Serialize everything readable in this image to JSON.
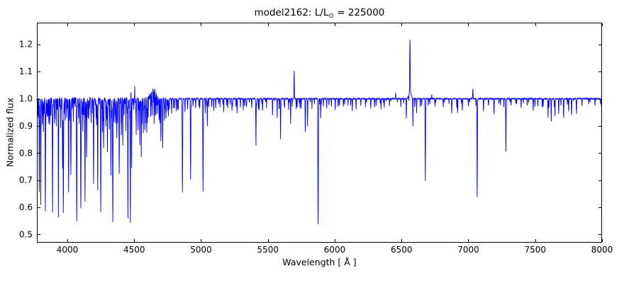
{
  "figure": {
    "title_prefix": "model2162: L/L",
    "title_sub": "⊙",
    "title_suffix": " = 225000"
  },
  "chart_data": {
    "type": "line",
    "title": "model2162: L/L⊙ = 225000",
    "xlabel": "Wavelength [ Å ]",
    "ylabel": "Normalized flux",
    "xlim": [
      3772,
      8000
    ],
    "ylim": [
      0.47,
      1.28
    ],
    "xticks": [
      4000,
      4500,
      5000,
      5500,
      6000,
      6500,
      7000,
      7500,
      8000
    ],
    "yticks": [
      0.5,
      0.6,
      0.7,
      0.8,
      0.9,
      1.0,
      1.1,
      1.2
    ],
    "grid": false,
    "legend": "none",
    "line_color": "#0000ff",
    "axes_color": "#000000",
    "background": "#ffffff",
    "continuum": 1.0,
    "noise_seed": 42,
    "features_columns": [
      "wavelength_A",
      "flux",
      "sigma_A"
    ],
    "features": [
      [
        3776,
        0.95,
        1.0
      ],
      [
        3782,
        0.93,
        1.0
      ],
      [
        3790,
        0.655,
        1.3
      ],
      [
        3801,
        0.61,
        1.4
      ],
      [
        3812,
        0.91,
        1.1
      ],
      [
        3821,
        0.88,
        1.2
      ],
      [
        3835,
        0.585,
        1.5
      ],
      [
        3850,
        0.93,
        1.1
      ],
      [
        3868,
        0.9,
        1.2
      ],
      [
        3889,
        0.585,
        1.7
      ],
      [
        3907,
        0.93,
        1.1
      ],
      [
        3933,
        0.565,
        1.5
      ],
      [
        3950,
        0.89,
        1.2
      ],
      [
        3964,
        0.75,
        1.3
      ],
      [
        3970,
        0.585,
        1.7
      ],
      [
        3984,
        0.92,
        1.1
      ],
      [
        3995,
        0.93,
        1.1
      ],
      [
        4009,
        0.66,
        1.4
      ],
      [
        4026,
        0.72,
        1.7
      ],
      [
        4045,
        0.92,
        1.2
      ],
      [
        4070,
        0.545,
        1.7
      ],
      [
        4089,
        0.91,
        1.2
      ],
      [
        4101,
        0.6,
        1.8
      ],
      [
        4116,
        0.88,
        1.3
      ],
      [
        4132,
        0.62,
        1.4
      ],
      [
        4144,
        0.78,
        1.4
      ],
      [
        4160,
        0.93,
        1.2
      ],
      [
        4178,
        0.91,
        1.2
      ],
      [
        4196,
        0.69,
        1.4
      ],
      [
        4215,
        0.93,
        1.2
      ],
      [
        4227,
        0.66,
        1.4
      ],
      [
        4250,
        0.58,
        1.4
      ],
      [
        4262,
        0.88,
        1.2
      ],
      [
        4271,
        0.82,
        1.3
      ],
      [
        4288,
        0.9,
        1.2
      ],
      [
        4300,
        0.8,
        1.4
      ],
      [
        4315,
        0.89,
        1.2
      ],
      [
        4326,
        0.72,
        1.3
      ],
      [
        4340,
        0.55,
        1.8
      ],
      [
        4360,
        0.91,
        1.2
      ],
      [
        4370,
        0.86,
        1.2
      ],
      [
        4388,
        0.72,
        1.4
      ],
      [
        4404,
        0.87,
        1.2
      ],
      [
        4415,
        0.83,
        1.3
      ],
      [
        4438,
        0.88,
        1.2
      ],
      [
        4453,
        0.56,
        1.4
      ],
      [
        4471,
        0.545,
        1.7
      ],
      [
        4481,
        0.75,
        1.3
      ],
      [
        4475,
        1.05,
        0.9
      ],
      [
        4504,
        1.05,
        0.9
      ],
      [
        4515,
        0.87,
        1.2
      ],
      [
        4529,
        0.89,
        1.2
      ],
      [
        4542,
        0.83,
        1.3
      ],
      [
        4553,
        0.79,
        1.3
      ],
      [
        4568,
        0.87,
        1.2
      ],
      [
        4580,
        0.88,
        1.2
      ],
      [
        4594,
        0.87,
        1.3
      ],
      [
        4645,
        1.033,
        22
      ],
      [
        4634,
        0.91,
        1.2
      ],
      [
        4649,
        0.88,
        1.3
      ],
      [
        4662,
        0.92,
        1.2
      ],
      [
        4673,
        0.93,
        1.2
      ],
      [
        4686,
        0.92,
        1.4
      ],
      [
        4700,
        0.84,
        1.4
      ],
      [
        4713,
        0.815,
        1.4
      ],
      [
        4726,
        0.92,
        1.2
      ],
      [
        4740,
        0.95,
        1.1
      ],
      [
        4762,
        0.96,
        1.1
      ],
      [
        4780,
        0.945,
        1.2
      ],
      [
        4800,
        0.965,
        1.1
      ],
      [
        4815,
        0.955,
        1.1
      ],
      [
        4830,
        0.96,
        1.1
      ],
      [
        4861,
        0.655,
        1.7
      ],
      [
        4880,
        0.95,
        1.2
      ],
      [
        4900,
        0.96,
        1.1
      ],
      [
        4922,
        0.705,
        1.5
      ],
      [
        4940,
        0.97,
        1.1
      ],
      [
        4960,
        0.965,
        1.1
      ],
      [
        4985,
        0.97,
        1.1
      ],
      [
        5015,
        0.66,
        1.5
      ],
      [
        5032,
        0.95,
        1.1
      ],
      [
        5047,
        0.9,
        1.3
      ],
      [
        5080,
        0.97,
        1.1
      ],
      [
        5110,
        0.965,
        1.1
      ],
      [
        5142,
        0.97,
        1.1
      ],
      [
        5170,
        0.95,
        1.2
      ],
      [
        5200,
        0.965,
        1.1
      ],
      [
        5235,
        0.97,
        1.1
      ],
      [
        5270,
        0.95,
        1.2
      ],
      [
        5316,
        0.96,
        1.2
      ],
      [
        5340,
        0.97,
        1.1
      ],
      [
        5380,
        0.965,
        1.1
      ],
      [
        5411,
        0.83,
        1.5
      ],
      [
        5435,
        0.96,
        1.1
      ],
      [
        5460,
        0.955,
        1.2
      ],
      [
        5490,
        0.965,
        1.1
      ],
      [
        5535,
        0.94,
        1.2
      ],
      [
        5570,
        0.93,
        1.2
      ],
      [
        5595,
        0.85,
        1.4
      ],
      [
        5625,
        0.965,
        1.1
      ],
      [
        5655,
        0.96,
        1.1
      ],
      [
        5670,
        0.91,
        1.2
      ],
      [
        5697,
        1.1,
        1.5
      ],
      [
        5712,
        0.96,
        1.1
      ],
      [
        5740,
        0.965,
        1.1
      ],
      [
        5780,
        0.88,
        1.3
      ],
      [
        5797,
        0.9,
        1.2
      ],
      [
        5830,
        0.965,
        1.1
      ],
      [
        5876,
        0.54,
        1.7
      ],
      [
        5895,
        0.93,
        1.2
      ],
      [
        5915,
        0.97,
        1.1
      ],
      [
        5940,
        0.965,
        1.1
      ],
      [
        5975,
        0.97,
        1.1
      ],
      [
        6004,
        0.96,
        1.2
      ],
      [
        6035,
        0.975,
        1.1
      ],
      [
        6065,
        0.97,
        1.1
      ],
      [
        6100,
        0.975,
        1.1
      ],
      [
        6132,
        0.955,
        1.2
      ],
      [
        6160,
        0.96,
        1.2
      ],
      [
        6195,
        0.975,
        1.1
      ],
      [
        6230,
        0.97,
        1.1
      ],
      [
        6270,
        0.965,
        1.2
      ],
      [
        6310,
        0.975,
        1.1
      ],
      [
        6347,
        0.96,
        1.2
      ],
      [
        6371,
        0.965,
        1.1
      ],
      [
        6410,
        0.975,
        1.1
      ],
      [
        6456,
        1.02,
        1.3
      ],
      [
        6495,
        0.97,
        1.1
      ],
      [
        6536,
        0.93,
        1.3
      ],
      [
        6563,
        1.215,
        2.0
      ],
      [
        6563,
        1.03,
        8
      ],
      [
        6585,
        0.9,
        1.3
      ],
      [
        6613,
        0.95,
        1.2
      ],
      [
        6640,
        0.97,
        1.1
      ],
      [
        6678,
        0.7,
        1.5
      ],
      [
        6700,
        0.975,
        1.1
      ],
      [
        6726,
        1.015,
        1.2
      ],
      [
        6750,
        0.97,
        1.1
      ],
      [
        6812,
        0.97,
        1.2
      ],
      [
        6876,
        0.945,
        1.4
      ],
      [
        6920,
        0.95,
        1.3
      ],
      [
        6955,
        0.955,
        1.3
      ],
      [
        7000,
        0.975,
        1.1
      ],
      [
        7034,
        1.035,
        1.4
      ],
      [
        7066,
        0.64,
        1.6
      ],
      [
        7113,
        0.955,
        1.3
      ],
      [
        7150,
        0.975,
        1.1
      ],
      [
        7192,
        0.945,
        1.3
      ],
      [
        7240,
        0.975,
        1.1
      ],
      [
        7281,
        0.805,
        1.6
      ],
      [
        7320,
        0.975,
        1.1
      ],
      [
        7360,
        0.98,
        1.1
      ],
      [
        7395,
        0.965,
        1.2
      ],
      [
        7440,
        0.975,
        1.1
      ],
      [
        7485,
        0.955,
        1.3
      ],
      [
        7520,
        0.975,
        1.1
      ],
      [
        7560,
        0.97,
        1.2
      ],
      [
        7596,
        0.93,
        1.4
      ],
      [
        7620,
        0.915,
        1.4
      ],
      [
        7648,
        0.94,
        1.3
      ],
      [
        7676,
        0.945,
        1.3
      ],
      [
        7713,
        0.93,
        1.4
      ],
      [
        7750,
        0.955,
        1.3
      ],
      [
        7772,
        0.94,
        1.4
      ],
      [
        7809,
        0.945,
        1.3
      ],
      [
        7850,
        0.975,
        1.1
      ],
      [
        7900,
        0.978,
        1.1
      ],
      [
        7947,
        0.975,
        1.1
      ],
      [
        7990,
        0.98,
        1.1
      ]
    ],
    "micro_bands": [
      {
        "range": [
          3778,
          4760
        ],
        "spacing": 7,
        "flux_min": 0.9,
        "flux_max": 0.995,
        "sigma": 1.0
      },
      {
        "range": [
          4760,
          5900
        ],
        "spacing": 26,
        "flux_min": 0.955,
        "flux_max": 0.995,
        "sigma": 1.0
      },
      {
        "range": [
          5900,
          8000
        ],
        "spacing": 42,
        "flux_min": 0.965,
        "flux_max": 0.998,
        "sigma": 1.0
      }
    ],
    "noise": [
      {
        "range": [
          3772,
          4760
        ],
        "amplitude": 0.005
      },
      {
        "range": [
          4760,
          8000
        ],
        "amplitude": 0.0025
      }
    ]
  }
}
